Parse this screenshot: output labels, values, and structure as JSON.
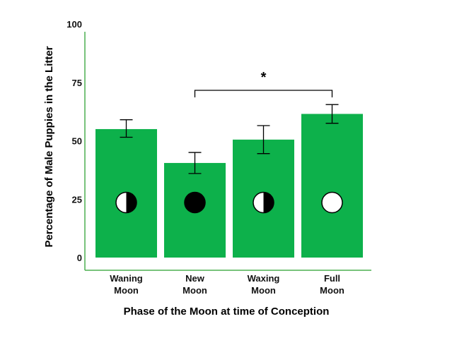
{
  "chart_data": {
    "type": "bar",
    "title": "",
    "xlabel": "Phase of the Moon at time of Conception",
    "ylabel": "Percentage of Male Puppies in the Litter",
    "ylim": [
      0,
      100
    ],
    "yticks": [
      "0",
      "25",
      "50",
      "75",
      "100"
    ],
    "categories": [
      [
        "Waning",
        "Moon"
      ],
      [
        "New",
        "Moon"
      ],
      [
        "Waxing",
        "Moon"
      ],
      [
        "Full",
        "Moon"
      ]
    ],
    "values": [
      55,
      40.5,
      50.5,
      61.5
    ],
    "error_low": [
      51.5,
      36,
      44.5,
      57.5
    ],
    "error_high": [
      59,
      45,
      56.5,
      65.5
    ],
    "moon_icons": [
      "waning-moon-icon",
      "new-moon-icon",
      "waxing-moon-icon",
      "full-moon-icon"
    ],
    "significance": {
      "from": 1,
      "to": 3,
      "label": "*"
    },
    "grid": false,
    "colors": {
      "bar": "#0db14b",
      "axis": "#4caf50",
      "text": "#000000"
    }
  }
}
